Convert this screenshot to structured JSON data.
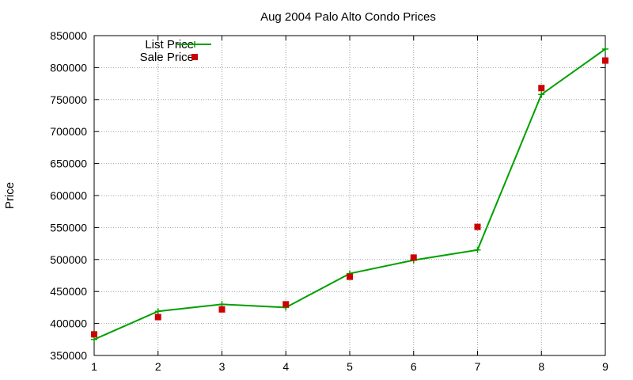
{
  "chart_data": {
    "type": "line",
    "title": "Aug 2004 Palo Alto Condo Prices",
    "xlabel": "",
    "ylabel": "Price",
    "xlim": [
      1,
      9
    ],
    "ylim": [
      350000,
      850000
    ],
    "xticks": [
      1,
      2,
      3,
      4,
      5,
      6,
      7,
      8,
      9
    ],
    "yticks": [
      350000,
      400000,
      450000,
      500000,
      550000,
      600000,
      650000,
      700000,
      750000,
      800000,
      850000
    ],
    "grid": true,
    "legend": "top-left",
    "x": [
      1,
      2,
      3,
      4,
      5,
      6,
      7,
      8,
      9
    ],
    "series": [
      {
        "name": "List Price",
        "style": "linespoints",
        "marker": "plus",
        "color": "#00a000",
        "values": [
          375000,
          419000,
          430000,
          425000,
          478000,
          499000,
          515000,
          758000,
          829000
        ]
      },
      {
        "name": "Sale Price",
        "style": "points",
        "marker": "square",
        "color": "#cc0000",
        "values": [
          383000,
          410000,
          422000,
          430000,
          473000,
          503000,
          551000,
          768000,
          811000
        ]
      }
    ]
  }
}
